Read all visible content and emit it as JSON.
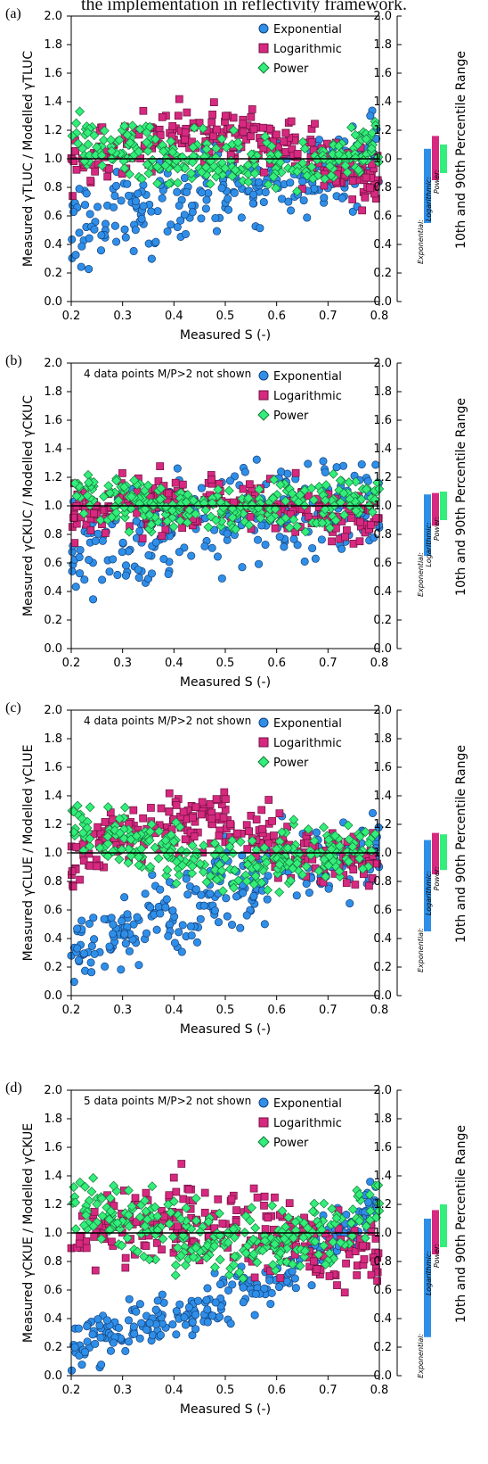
{
  "header": {
    "text": "the implementation in reflectivity framework."
  },
  "colors": {
    "exponential": "#2f8fe8",
    "logarithmic": "#d6297f",
    "power": "#33ee7a",
    "axis": "#000000"
  },
  "chart_data": [
    {
      "type": "scatter",
      "panel": "(a)",
      "xlabel": "Measured S (-)",
      "ylabel": "Measured γTLUC / Modelled γTLUC",
      "ylabel_right": "10th and 90th Percentile Range",
      "xlim": [
        0.2,
        0.8
      ],
      "ylim": [
        0,
        2.0
      ],
      "x_ticks": [
        "0.2",
        "0.3",
        "0.4",
        "0.5",
        "0.6",
        "0.7",
        "0.8"
      ],
      "y_ticks": [
        "0.0",
        "0.2",
        "0.4",
        "0.6",
        "0.8",
        "1.0",
        "1.2",
        "1.4",
        "1.6",
        "1.8",
        "2.0"
      ],
      "reference_line": 1.0,
      "legend": [
        "Exponential",
        "Logarithmic",
        "Power"
      ],
      "note": "",
      "percentile_range": [
        {
          "name": "Exponential",
          "p10": 0.55,
          "p90": 1.07
        },
        {
          "name": "Logarithmic",
          "p10": 0.85,
          "p90": 1.16
        },
        {
          "name": "Power",
          "p10": 0.9,
          "p90": 1.1
        }
      ],
      "series": [
        {
          "name": "Exponential",
          "trend": [
            [
              0.2,
              0.55
            ],
            [
              0.3,
              0.6
            ],
            [
              0.4,
              0.68
            ],
            [
              0.5,
              0.78
            ],
            [
              0.6,
              0.88
            ],
            [
              0.7,
              0.95
            ],
            [
              0.8,
              1.0
            ]
          ],
          "spread": 0.15
        },
        {
          "name": "Logarithmic",
          "trend": [
            [
              0.2,
              0.95
            ],
            [
              0.3,
              1.05
            ],
            [
              0.4,
              1.15
            ],
            [
              0.5,
              1.18
            ],
            [
              0.6,
              1.1
            ],
            [
              0.7,
              0.98
            ],
            [
              0.8,
              0.85
            ]
          ],
          "spread": 0.1
        },
        {
          "name": "Power",
          "trend": [
            [
              0.2,
              1.12
            ],
            [
              0.3,
              1.05
            ],
            [
              0.4,
              1.0
            ],
            [
              0.5,
              0.98
            ],
            [
              0.6,
              0.97
            ],
            [
              0.7,
              1.0
            ],
            [
              0.8,
              1.1
            ]
          ],
          "spread": 0.09
        }
      ]
    },
    {
      "type": "scatter",
      "panel": "(b)",
      "xlabel": "Measured S (-)",
      "ylabel": "Measured γCKUC / Modelled γCKUC",
      "ylabel_right": "10th and 90th Percentile Range",
      "xlim": [
        0.2,
        0.8
      ],
      "ylim": [
        0,
        2.0
      ],
      "x_ticks": [
        "0.2",
        "0.3",
        "0.4",
        "0.5",
        "0.6",
        "0.7",
        "0.8"
      ],
      "y_ticks": [
        "0.0",
        "0.2",
        "0.4",
        "0.6",
        "0.8",
        "1.0",
        "1.2",
        "1.4",
        "1.6",
        "1.8",
        "2.0"
      ],
      "reference_line": 1.0,
      "legend": [
        "Exponential",
        "Logarithmic",
        "Power"
      ],
      "note": "4 data points M/P>2 not shown",
      "percentile_range": [
        {
          "name": "Exponential",
          "p10": 0.65,
          "p90": 1.08
        },
        {
          "name": "Logarithmic",
          "p10": 0.86,
          "p90": 1.09
        },
        {
          "name": "Power",
          "p10": 0.9,
          "p90": 1.1
        }
      ],
      "series": [
        {
          "name": "Exponential",
          "trend": [
            [
              0.2,
              0.7
            ],
            [
              0.3,
              0.75
            ],
            [
              0.4,
              0.85
            ],
            [
              0.5,
              0.92
            ],
            [
              0.6,
              0.97
            ],
            [
              0.7,
              1.0
            ],
            [
              0.8,
              1.02
            ]
          ],
          "spread": 0.18
        },
        {
          "name": "Logarithmic",
          "trend": [
            [
              0.2,
              0.95
            ],
            [
              0.3,
              1.0
            ],
            [
              0.4,
              1.02
            ],
            [
              0.5,
              1.03
            ],
            [
              0.6,
              1.0
            ],
            [
              0.7,
              0.95
            ],
            [
              0.8,
              0.88
            ]
          ],
          "spread": 0.09
        },
        {
          "name": "Power",
          "trend": [
            [
              0.2,
              1.08
            ],
            [
              0.3,
              1.03
            ],
            [
              0.4,
              1.0
            ],
            [
              0.5,
              0.99
            ],
            [
              0.6,
              0.99
            ],
            [
              0.7,
              1.02
            ],
            [
              0.8,
              1.08
            ]
          ],
          "spread": 0.08
        }
      ]
    },
    {
      "type": "scatter",
      "panel": "(c)",
      "xlabel": "Measured S (-)",
      "ylabel": "Measured γCLUE / Modelled γCLUE",
      "ylabel_right": "10th and 90th Percentile Range",
      "xlim": [
        0.2,
        0.8
      ],
      "ylim": [
        0,
        2.0
      ],
      "x_ticks": [
        "0.2",
        "0.3",
        "0.4",
        "0.5",
        "0.6",
        "0.7",
        "0.8"
      ],
      "y_ticks": [
        "0.0",
        "0.2",
        "0.4",
        "0.6",
        "0.8",
        "1.0",
        "1.2",
        "1.4",
        "1.6",
        "1.8",
        "2.0"
      ],
      "reference_line": 1.0,
      "legend": [
        "Exponential",
        "Logarithmic",
        "Power"
      ],
      "note": "4 data points M/P>2 not shown",
      "percentile_range": [
        {
          "name": "Exponential",
          "p10": 0.45,
          "p90": 1.09
        },
        {
          "name": "Logarithmic",
          "p10": 0.85,
          "p90": 1.14
        },
        {
          "name": "Power",
          "p10": 0.88,
          "p90": 1.13
        }
      ],
      "series": [
        {
          "name": "Exponential",
          "trend": [
            [
              0.2,
              0.3
            ],
            [
              0.3,
              0.45
            ],
            [
              0.4,
              0.6
            ],
            [
              0.5,
              0.72
            ],
            [
              0.6,
              0.85
            ],
            [
              0.7,
              0.95
            ],
            [
              0.8,
              1.05
            ]
          ],
          "spread": 0.14
        },
        {
          "name": "Logarithmic",
          "trend": [
            [
              0.2,
              0.95
            ],
            [
              0.3,
              1.1
            ],
            [
              0.4,
              1.25
            ],
            [
              0.5,
              1.2
            ],
            [
              0.6,
              1.08
            ],
            [
              0.7,
              0.98
            ],
            [
              0.8,
              0.9
            ]
          ],
          "spread": 0.1
        },
        {
          "name": "Power",
          "trend": [
            [
              0.2,
              1.2
            ],
            [
              0.3,
              1.1
            ],
            [
              0.4,
              1.0
            ],
            [
              0.5,
              0.95
            ],
            [
              0.6,
              0.93
            ],
            [
              0.7,
              0.98
            ],
            [
              0.8,
              1.1
            ]
          ],
          "spread": 0.1
        }
      ]
    },
    {
      "type": "scatter",
      "panel": "(d)",
      "xlabel": "Measured S (-)",
      "ylabel": "Measured γCKUE / Modelled γCKUE",
      "ylabel_right": "10th and 90th Percentile Range",
      "xlim": [
        0.2,
        0.8
      ],
      "ylim": [
        0,
        2.0
      ],
      "x_ticks": [
        "0.2",
        "0.3",
        "0.4",
        "0.5",
        "0.6",
        "0.7",
        "0.8"
      ],
      "y_ticks": [
        "0.0",
        "0.2",
        "0.4",
        "0.6",
        "0.8",
        "1.0",
        "1.2",
        "1.4",
        "1.6",
        "1.8",
        "2.0"
      ],
      "reference_line": 1.0,
      "legend": [
        "Exponential",
        "Logarithmic",
        "Power"
      ],
      "note": "5 data points M/P>2 not shown",
      "percentile_range": [
        {
          "name": "Exponential",
          "p10": 0.27,
          "p90": 1.1
        },
        {
          "name": "Logarithmic",
          "p10": 0.85,
          "p90": 1.16
        },
        {
          "name": "Power",
          "p10": 0.9,
          "p90": 1.2
        }
      ],
      "series": [
        {
          "name": "Exponential",
          "trend": [
            [
              0.2,
              0.22
            ],
            [
              0.3,
              0.3
            ],
            [
              0.4,
              0.4
            ],
            [
              0.5,
              0.52
            ],
            [
              0.6,
              0.68
            ],
            [
              0.7,
              0.9
            ],
            [
              0.8,
              1.25
            ]
          ],
          "spread": 0.09
        },
        {
          "name": "Logarithmic",
          "trend": [
            [
              0.2,
              0.9
            ],
            [
              0.3,
              1.05
            ],
            [
              0.4,
              1.1
            ],
            [
              0.5,
              1.08
            ],
            [
              0.6,
              1.0
            ],
            [
              0.7,
              0.9
            ],
            [
              0.8,
              0.85
            ]
          ],
          "spread": 0.13
        },
        {
          "name": "Power",
          "trend": [
            [
              0.2,
              1.25
            ],
            [
              0.3,
              1.1
            ],
            [
              0.4,
              0.98
            ],
            [
              0.5,
              0.92
            ],
            [
              0.6,
              0.92
            ],
            [
              0.7,
              1.0
            ],
            [
              0.8,
              1.2
            ]
          ],
          "spread": 0.12
        }
      ]
    }
  ]
}
